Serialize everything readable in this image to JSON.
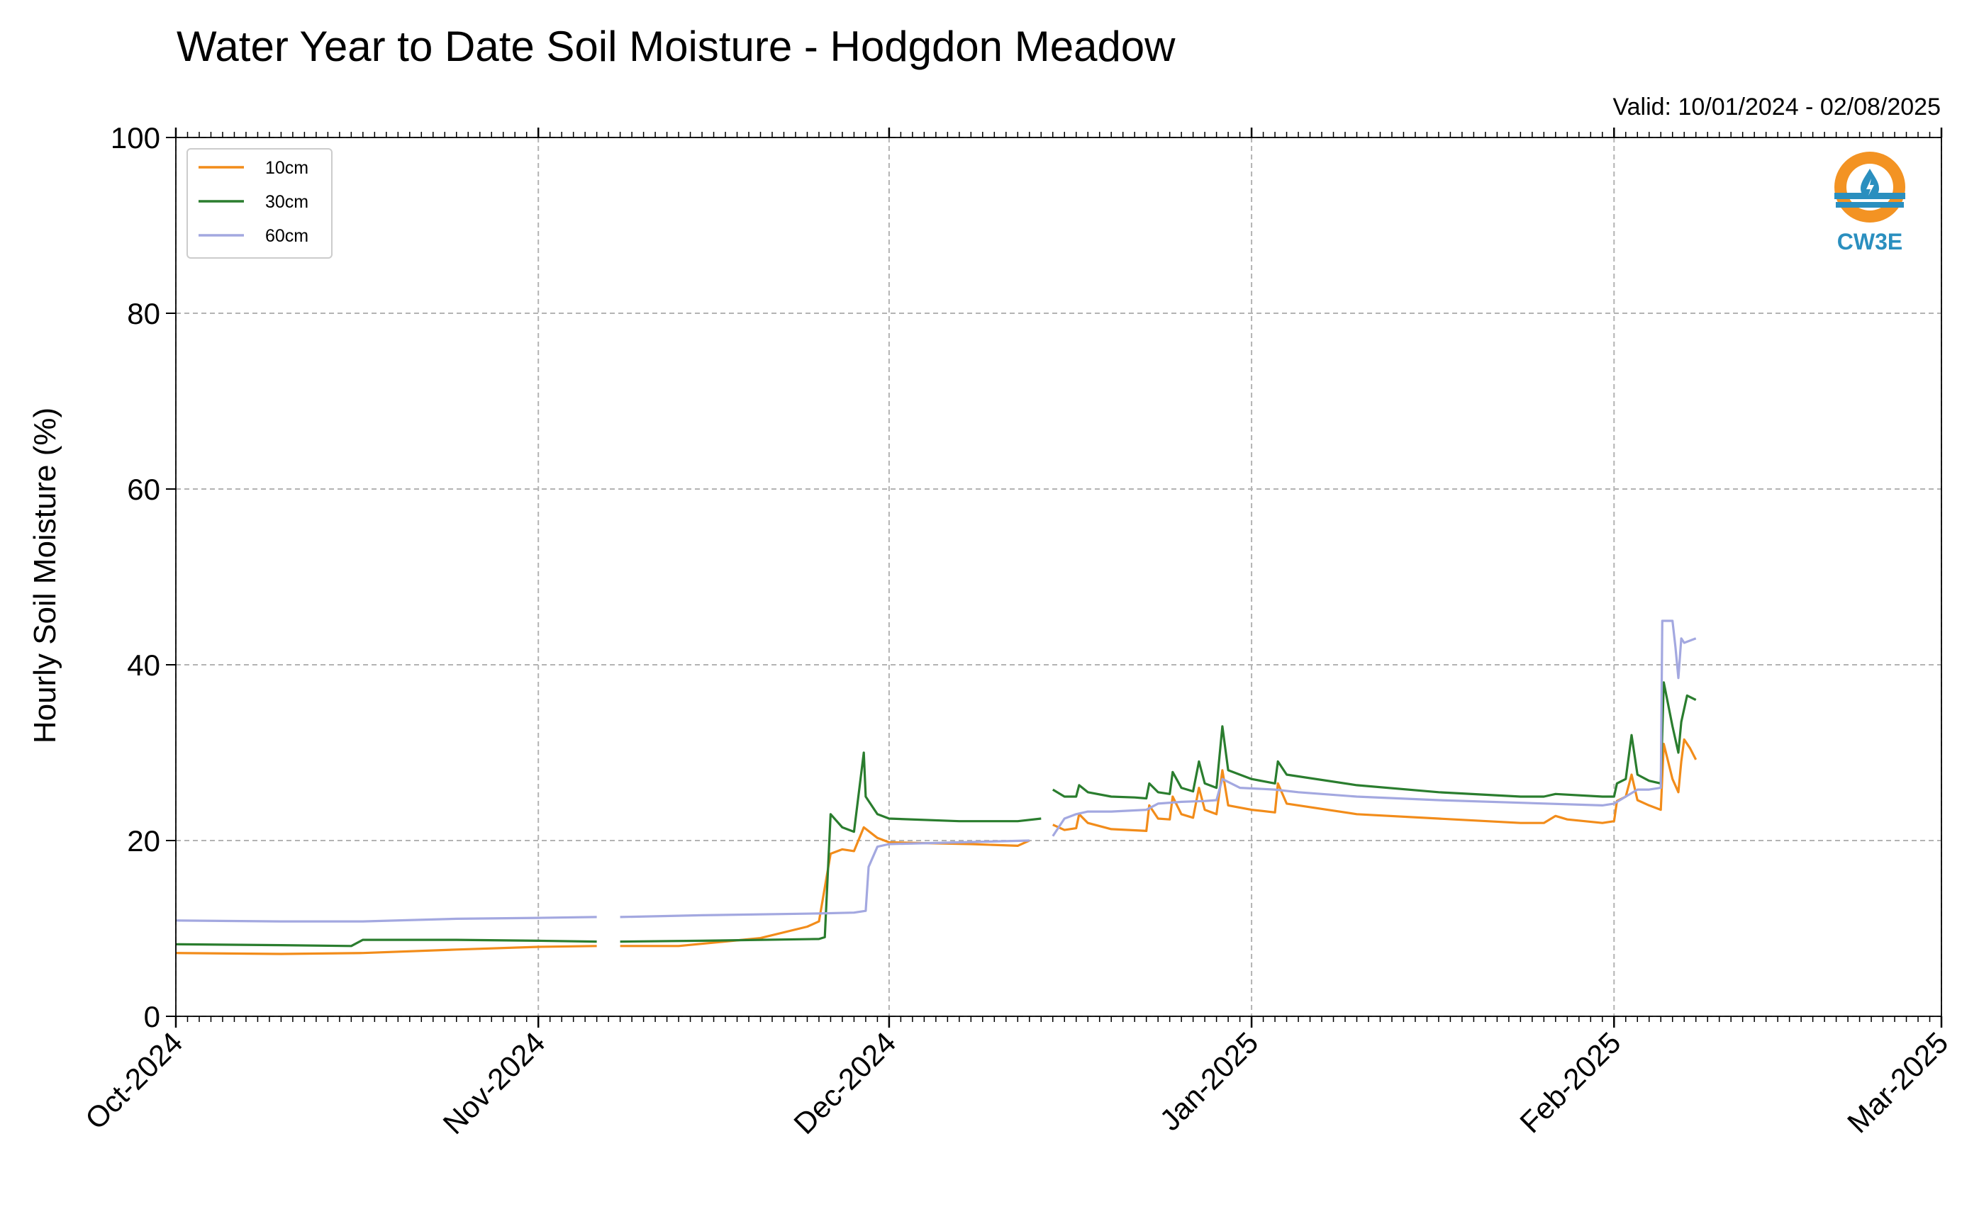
{
  "chart_data": {
    "type": "line",
    "title": "Water Year to Date Soil Moisture - Hodgdon Meadow",
    "subtitle": "Valid: 10/01/2024 - 02/08/2025",
    "xlabel": "",
    "ylabel": "Hourly Soil Moisture (%)",
    "xlim": [
      "2024-10-01",
      "2025-03-01"
    ],
    "ylim": [
      0,
      100
    ],
    "yticks": [
      0,
      20,
      40,
      60,
      80,
      100
    ],
    "xticks": [
      {
        "date": "2024-10-01",
        "label": "Oct-2024"
      },
      {
        "date": "2024-11-01",
        "label": "Nov-2024"
      },
      {
        "date": "2024-12-01",
        "label": "Dec-2024"
      },
      {
        "date": "2025-01-01",
        "label": "Jan-2025"
      },
      {
        "date": "2025-02-01",
        "label": "Feb-2025"
      },
      {
        "date": "2025-03-01",
        "label": "Mar-2025"
      }
    ],
    "grid": true,
    "legend_position": "upper-left",
    "logo": "CW3E",
    "series": [
      {
        "name": "10cm",
        "color": "#f28c1a",
        "points": [
          [
            "2024-10-01",
            7.2
          ],
          [
            "2024-10-10",
            7.1
          ],
          [
            "2024-10-17",
            7.2
          ],
          [
            "2024-10-25",
            7.6
          ],
          [
            "2024-11-01",
            7.9
          ],
          [
            "2024-11-06",
            8.0
          ],
          [
            null,
            null
          ],
          [
            "2024-11-08",
            8.0
          ],
          [
            "2024-11-13",
            8.0
          ],
          [
            "2024-11-20",
            8.9
          ],
          [
            "2024-11-24",
            10.2
          ],
          [
            "2024-11-25",
            10.8
          ],
          [
            "2024-11-26",
            18.5
          ],
          [
            "2024-11-27",
            19.0
          ],
          [
            "2024-11-28",
            18.8
          ],
          [
            "2024-11-28T20",
            21.5
          ],
          [
            "2024-11-30",
            20.3
          ],
          [
            "2024-12-01",
            19.8
          ],
          [
            "2024-12-08",
            19.6
          ],
          [
            "2024-12-12",
            19.4
          ],
          [
            "2024-12-13",
            20.0
          ],
          [
            null,
            null
          ],
          [
            "2024-12-15",
            21.8
          ],
          [
            "2024-12-16",
            21.2
          ],
          [
            "2024-12-17",
            21.4
          ],
          [
            "2024-12-17T06",
            23.0
          ],
          [
            "2024-12-18",
            22.0
          ],
          [
            "2024-12-20",
            21.3
          ],
          [
            "2024-12-23",
            21.1
          ],
          [
            "2024-12-23T06",
            24.0
          ],
          [
            "2024-12-24",
            22.5
          ],
          [
            "2024-12-25",
            22.4
          ],
          [
            "2024-12-25T06",
            25.0
          ],
          [
            "2024-12-26",
            23.0
          ],
          [
            "2024-12-27",
            22.6
          ],
          [
            "2024-12-27T12",
            26.0
          ],
          [
            "2024-12-28",
            23.5
          ],
          [
            "2024-12-29",
            23.0
          ],
          [
            "2024-12-29T12",
            28.0
          ],
          [
            "2024-12-30",
            24.0
          ],
          [
            "2025-01-01",
            23.5
          ],
          [
            "2025-01-03",
            23.2
          ],
          [
            "2025-01-03T06",
            26.5
          ],
          [
            "2025-01-04",
            24.2
          ],
          [
            "2025-01-10",
            23.0
          ],
          [
            "2025-01-17",
            22.5
          ],
          [
            "2025-01-24",
            22.0
          ],
          [
            "2025-01-26",
            22.0
          ],
          [
            "2025-01-27",
            22.8
          ],
          [
            "2025-01-28",
            22.4
          ],
          [
            "2025-01-31",
            22.0
          ],
          [
            "2025-02-01",
            22.2
          ],
          [
            "2025-02-01T06",
            24.5
          ],
          [
            "2025-02-02",
            25.0
          ],
          [
            "2025-02-02T12",
            27.5
          ],
          [
            "2025-02-03",
            24.6
          ],
          [
            "2025-02-04",
            24.0
          ],
          [
            "2025-02-05",
            23.5
          ],
          [
            "2025-02-05T06",
            31.0
          ],
          [
            "2025-02-06",
            27.0
          ],
          [
            "2025-02-06T12",
            25.5
          ],
          [
            "2025-02-06T18",
            29.0
          ],
          [
            "2025-02-07",
            31.5
          ],
          [
            "2025-02-07T12",
            30.5
          ],
          [
            "2025-02-08",
            29.2
          ]
        ]
      },
      {
        "name": "30cm",
        "color": "#2a7d2e",
        "points": [
          [
            "2024-10-01",
            8.2
          ],
          [
            "2024-10-10",
            8.1
          ],
          [
            "2024-10-16",
            8.0
          ],
          [
            "2024-10-17",
            8.7
          ],
          [
            "2024-10-25",
            8.7
          ],
          [
            "2024-11-01",
            8.6
          ],
          [
            "2024-11-06",
            8.5
          ],
          [
            null,
            null
          ],
          [
            "2024-11-08",
            8.5
          ],
          [
            "2024-11-15",
            8.6
          ],
          [
            "2024-11-25",
            8.8
          ],
          [
            "2024-11-25T12",
            9.0
          ],
          [
            "2024-11-26",
            23.0
          ],
          [
            "2024-11-27",
            21.5
          ],
          [
            "2024-11-28",
            21.0
          ],
          [
            "2024-11-28T20",
            30.0
          ],
          [
            "2024-11-29",
            25.0
          ],
          [
            "2024-11-30",
            23.0
          ],
          [
            "2024-12-01",
            22.5
          ],
          [
            "2024-12-07",
            22.2
          ],
          [
            "2024-12-12",
            22.2
          ],
          [
            "2024-12-14",
            22.5
          ],
          [
            null,
            null
          ],
          [
            "2024-12-15",
            25.8
          ],
          [
            "2024-12-16",
            25.0
          ],
          [
            "2024-12-17",
            25.0
          ],
          [
            "2024-12-17T06",
            26.3
          ],
          [
            "2024-12-18",
            25.5
          ],
          [
            "2024-12-20",
            25.0
          ],
          [
            "2024-12-22",
            24.9
          ],
          [
            "2024-12-23",
            24.8
          ],
          [
            "2024-12-23T06",
            26.5
          ],
          [
            "2024-12-24",
            25.5
          ],
          [
            "2024-12-25",
            25.3
          ],
          [
            "2024-12-25T06",
            27.8
          ],
          [
            "2024-12-26",
            26.0
          ],
          [
            "2024-12-27",
            25.6
          ],
          [
            "2024-12-27T12",
            29.0
          ],
          [
            "2024-12-28",
            26.5
          ],
          [
            "2024-12-29",
            26.0
          ],
          [
            "2024-12-29T12",
            33.0
          ],
          [
            "2024-12-30",
            28.0
          ],
          [
            "2025-01-01",
            27.0
          ],
          [
            "2025-01-03",
            26.5
          ],
          [
            "2025-01-03T06",
            29.0
          ],
          [
            "2025-01-04",
            27.5
          ],
          [
            "2025-01-10",
            26.3
          ],
          [
            "2025-01-17",
            25.5
          ],
          [
            "2025-01-24",
            25.0
          ],
          [
            "2025-01-26",
            25.0
          ],
          [
            "2025-01-27",
            25.3
          ],
          [
            "2025-01-31",
            25.0
          ],
          [
            "2025-02-01",
            25.0
          ],
          [
            "2025-02-01T06",
            26.5
          ],
          [
            "2025-02-02",
            27.0
          ],
          [
            "2025-02-02T12",
            32.0
          ],
          [
            "2025-02-03",
            27.5
          ],
          [
            "2025-02-04",
            26.8
          ],
          [
            "2025-02-05",
            26.5
          ],
          [
            "2025-02-05T06",
            38.0
          ],
          [
            "2025-02-06",
            33.0
          ],
          [
            "2025-02-06T12",
            30.0
          ],
          [
            "2025-02-06T18",
            33.5
          ],
          [
            "2025-02-07",
            35.0
          ],
          [
            "2025-02-07T06",
            36.5
          ],
          [
            "2025-02-08",
            36.0
          ]
        ]
      },
      {
        "name": "60cm",
        "color": "#a3a8e0",
        "points": [
          [
            "2024-10-01",
            10.9
          ],
          [
            "2024-10-10",
            10.8
          ],
          [
            "2024-10-17",
            10.8
          ],
          [
            "2024-10-25",
            11.1
          ],
          [
            "2024-11-01",
            11.2
          ],
          [
            "2024-11-06",
            11.3
          ],
          [
            null,
            null
          ],
          [
            "2024-11-08",
            11.3
          ],
          [
            "2024-11-15",
            11.5
          ],
          [
            "2024-11-25",
            11.7
          ],
          [
            "2024-11-28",
            11.8
          ],
          [
            "2024-11-29",
            12.0
          ],
          [
            "2024-11-29T06",
            17.0
          ],
          [
            "2024-11-30",
            19.3
          ],
          [
            "2024-12-01",
            19.6
          ],
          [
            "2024-12-07",
            19.8
          ],
          [
            "2024-12-13",
            20.0
          ],
          [
            null,
            null
          ],
          [
            "2024-12-15",
            20.5
          ],
          [
            "2024-12-16",
            22.5
          ],
          [
            "2024-12-17",
            23.0
          ],
          [
            "2024-12-18",
            23.3
          ],
          [
            "2024-12-20",
            23.3
          ],
          [
            "2024-12-23",
            23.5
          ],
          [
            "2024-12-24",
            24.2
          ],
          [
            "2024-12-26",
            24.4
          ],
          [
            "2024-12-28",
            24.5
          ],
          [
            "2024-12-29",
            24.6
          ],
          [
            "2024-12-29T12",
            27.0
          ],
          [
            "2024-12-31",
            26.0
          ],
          [
            "2025-01-03",
            25.8
          ],
          [
            "2025-01-05",
            25.5
          ],
          [
            "2025-01-10",
            25.0
          ],
          [
            "2025-01-17",
            24.6
          ],
          [
            "2025-01-24",
            24.3
          ],
          [
            "2025-01-31",
            24.0
          ],
          [
            "2025-02-01",
            24.2
          ],
          [
            "2025-02-02",
            25.0
          ],
          [
            "2025-02-03",
            25.8
          ],
          [
            "2025-02-04",
            25.8
          ],
          [
            "2025-02-05",
            26.0
          ],
          [
            "2025-02-05T03",
            45.0
          ],
          [
            "2025-02-06",
            45.0
          ],
          [
            "2025-02-06T06",
            42.0
          ],
          [
            "2025-02-06T12",
            38.5
          ],
          [
            "2025-02-06T18",
            43.0
          ],
          [
            "2025-02-07",
            42.5
          ],
          [
            "2025-02-08",
            43.0
          ]
        ]
      }
    ]
  }
}
